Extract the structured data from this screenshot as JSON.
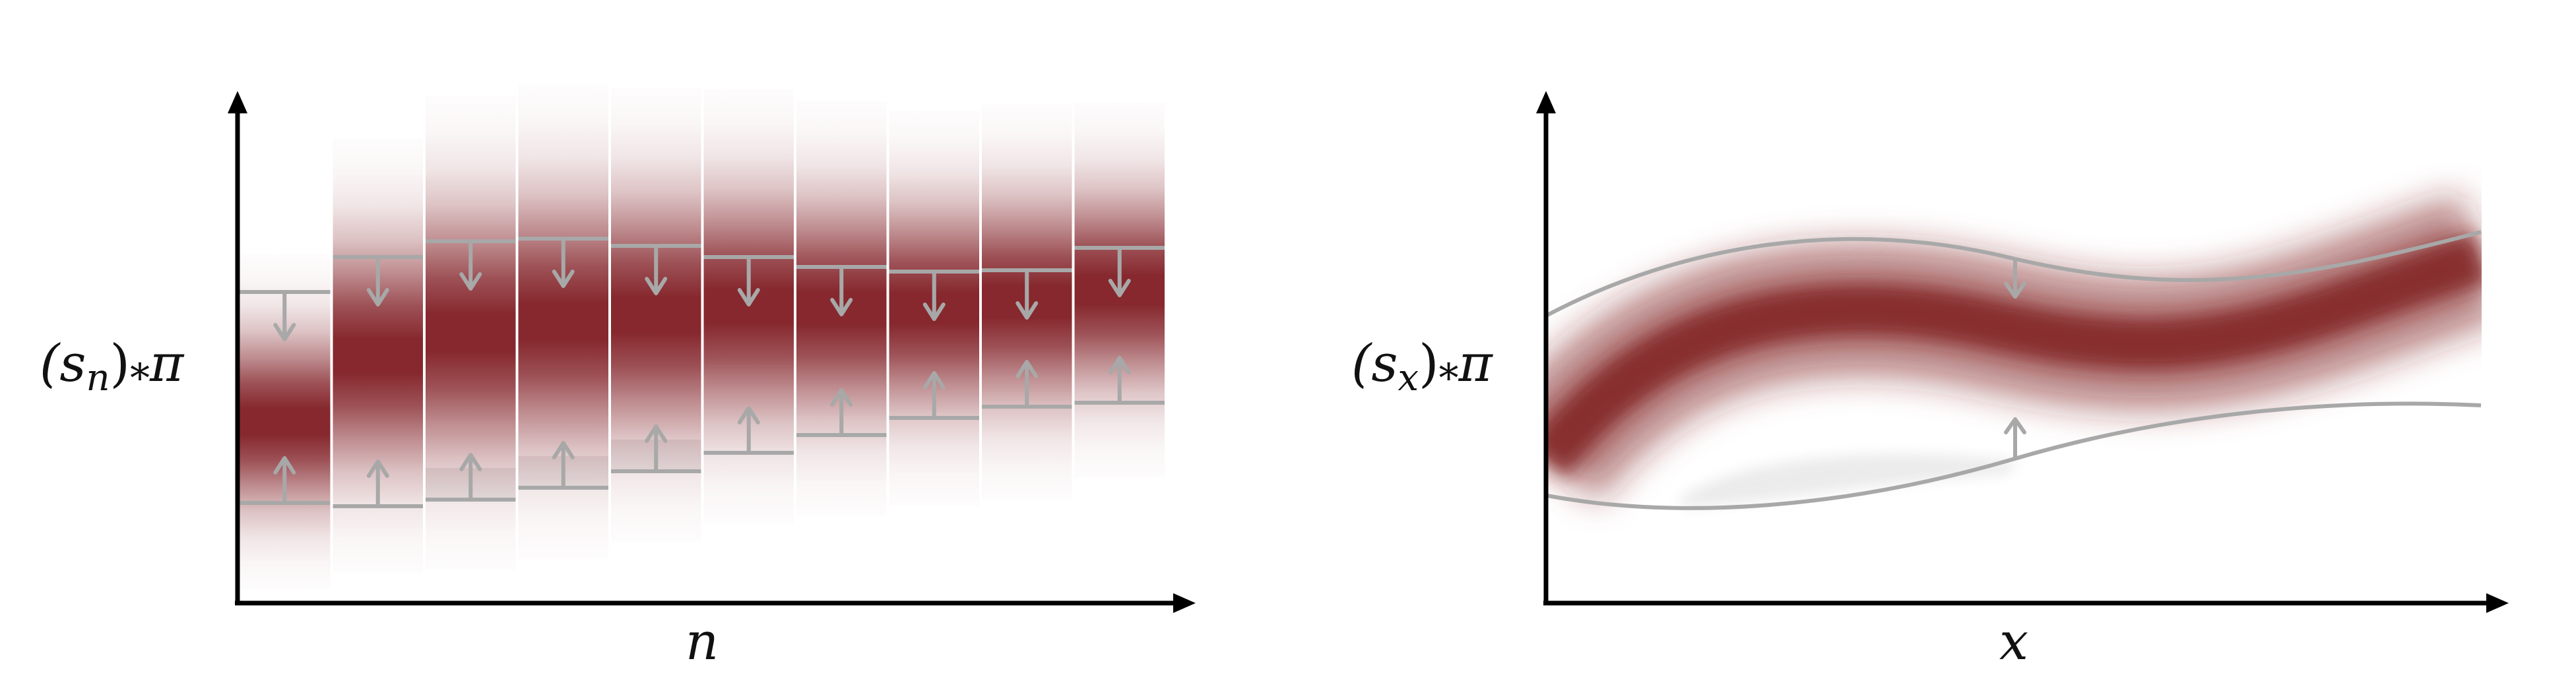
{
  "colors": {
    "density": "#7f1c22",
    "bound": "#a8a8a8",
    "axis": "#000000",
    "gap_shade": "#ececec"
  },
  "icons": [
    "up-arrow-icon",
    "down-arrow-icon",
    "axis-arrowhead-icon"
  ],
  "left_panel": {
    "ylabel": "(s",
    "ylabel_sub": "n",
    "ylabel_rest": ")",
    "ylabel_star": "*",
    "ylabel_pi": "π",
    "xlabel": "n"
  },
  "right_panel": {
    "ylabel": "(s",
    "ylabel_sub": "x",
    "ylabel_rest": ")",
    "ylabel_star": "*",
    "ylabel_pi": "π",
    "xlabel": "x"
  }
}
